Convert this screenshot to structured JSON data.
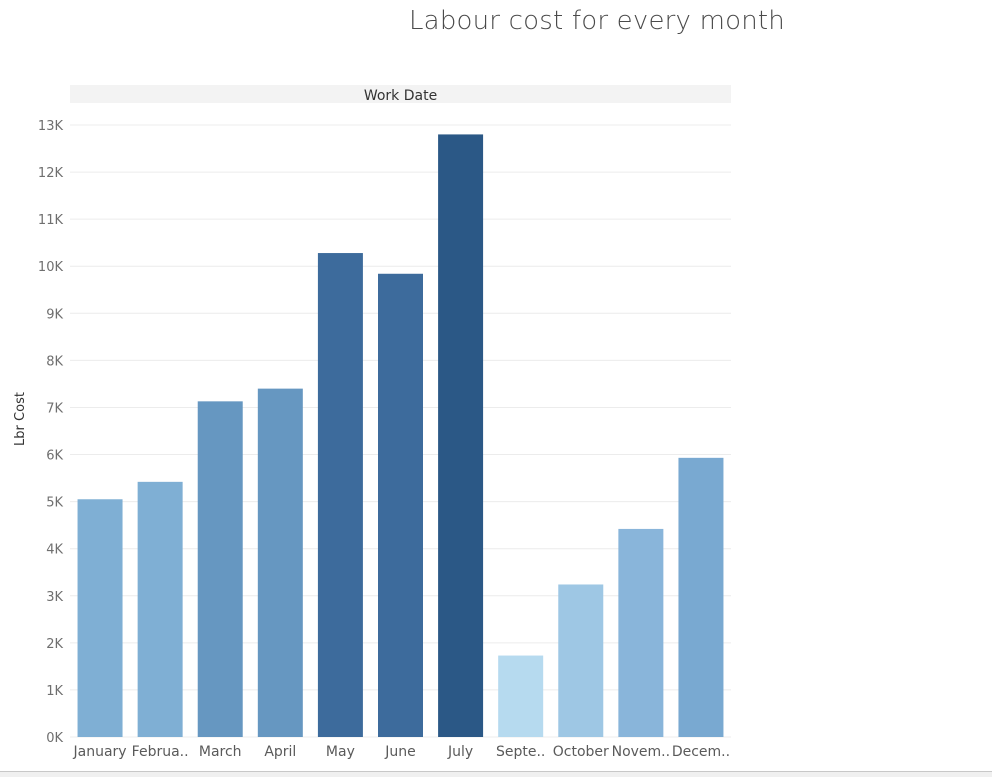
{
  "chart_data": {
    "type": "bar",
    "title": "Labour cost for every month",
    "header": "Work Date",
    "ylabel": "Lbr Cost",
    "xlabel": "",
    "ylim": [
      0,
      13000
    ],
    "y_ticks": [
      {
        "value": 0,
        "label": "0K"
      },
      {
        "value": 1000,
        "label": "1K"
      },
      {
        "value": 2000,
        "label": "2K"
      },
      {
        "value": 3000,
        "label": "3K"
      },
      {
        "value": 4000,
        "label": "4K"
      },
      {
        "value": 5000,
        "label": "5K"
      },
      {
        "value": 6000,
        "label": "6K"
      },
      {
        "value": 7000,
        "label": "7K"
      },
      {
        "value": 8000,
        "label": "8K"
      },
      {
        "value": 9000,
        "label": "9K"
      },
      {
        "value": 10000,
        "label": "10K"
      },
      {
        "value": 11000,
        "label": "11K"
      },
      {
        "value": 12000,
        "label": "12K"
      },
      {
        "value": 13000,
        "label": "13K"
      }
    ],
    "categories": [
      "January",
      "Februa..",
      "March",
      "April",
      "May",
      "June",
      "July",
      "Septe..",
      "October",
      "Novem..",
      "Decem.."
    ],
    "values": [
      5050,
      5420,
      7130,
      7400,
      10280,
      9840,
      12800,
      1730,
      3240,
      4420,
      5930
    ],
    "colors": [
      "#7fafd4",
      "#7fafd4",
      "#6697c1",
      "#6697c1",
      "#3d6b9c",
      "#3d6b9c",
      "#2b5886",
      "#b6daef",
      "#9ec7e4",
      "#89b5da",
      "#79a9d1"
    ],
    "grid": true,
    "legend": "none"
  }
}
